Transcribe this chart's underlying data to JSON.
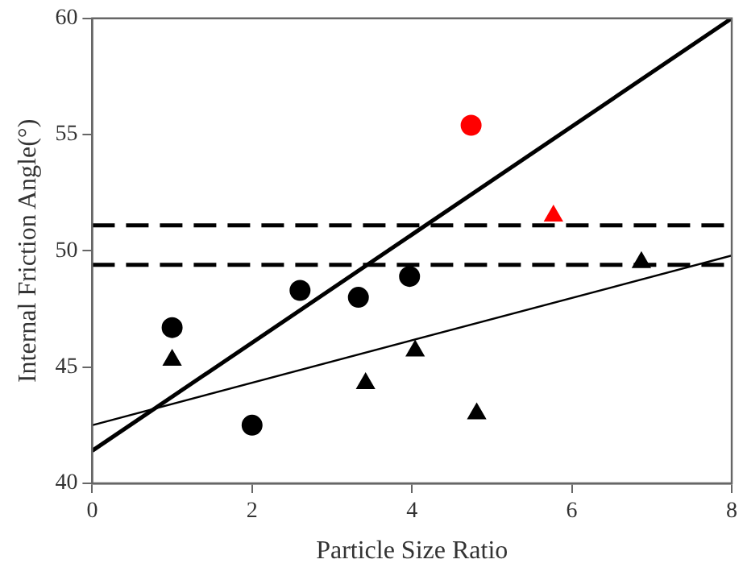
{
  "chart_data": {
    "type": "scatter",
    "xlabel": "Particle Size Ratio",
    "ylabel": "Internal Friction Angle(°)",
    "xlim": [
      0,
      8
    ],
    "xticks": [
      0,
      2,
      4,
      6,
      8
    ],
    "ylim": [
      40,
      60
    ],
    "yticks": [
      40,
      45,
      50,
      55,
      60
    ],
    "grid": false,
    "legend": false,
    "series": [
      {
        "marker": "circle",
        "x": [
          1.0,
          2.0,
          2.6,
          3.33,
          3.97,
          4.74
        ],
        "values": [
          46.7,
          42.5,
          48.3,
          48.0,
          48.9,
          55.4
        ],
        "colors": [
          "#000000",
          "#000000",
          "#000000",
          "#000000",
          "#000000",
          "#ff0000"
        ]
      },
      {
        "marker": "triangle",
        "x": [
          1.0,
          3.42,
          4.04,
          4.81,
          6.87,
          5.77
        ],
        "values": [
          45.3,
          44.3,
          45.7,
          43.0,
          49.5,
          51.5
        ],
        "colors": [
          "#000000",
          "#000000",
          "#000000",
          "#000000",
          "#000000",
          "#ff0000"
        ]
      },
      {
        "type": "line",
        "marker": "none",
        "line_style": "solid",
        "color": "#000000",
        "x": [
          0,
          8
        ],
        "values": [
          41.4,
          60
        ]
      },
      {
        "type": "line",
        "marker": "none",
        "line_style": "solid",
        "color": "#000000",
        "x": [
          0,
          8
        ],
        "values": [
          42.5,
          49.8
        ]
      }
    ],
    "ref_lines": [
      {
        "axis": "y",
        "value": 51.1,
        "color": "#000000",
        "line_style": "dashed"
      },
      {
        "axis": "y",
        "value": 49.4,
        "color": "#000000",
        "line_style": "dashed"
      }
    ]
  }
}
